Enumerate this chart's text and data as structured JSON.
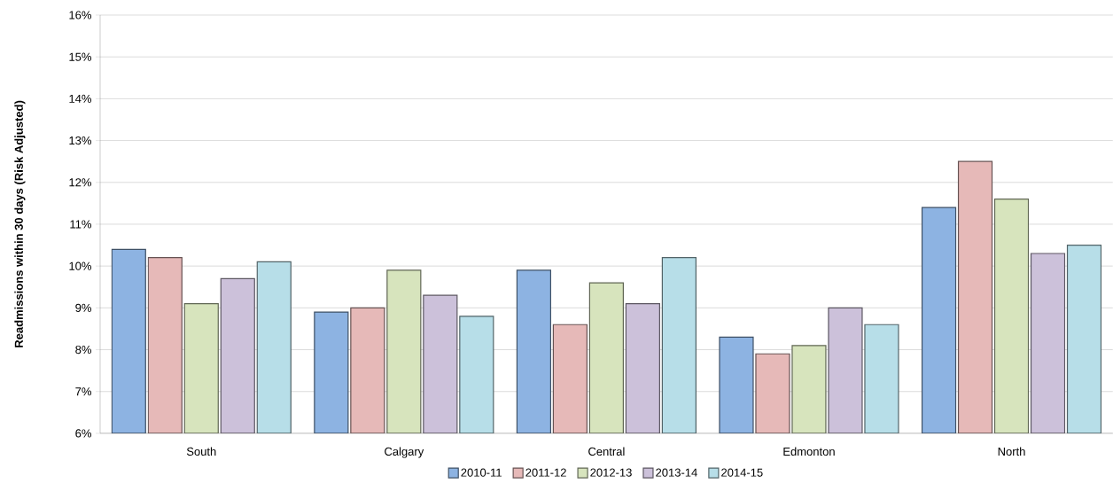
{
  "chart_data": {
    "type": "bar",
    "ylabel": "Readmissions within 30 days (Risk Adjusted)",
    "categories": [
      "South",
      "Calgary",
      "Central",
      "Edmonton",
      "North"
    ],
    "series": [
      {
        "name": "2010-11",
        "color": "#8db3e2",
        "values": [
          10.4,
          8.9,
          9.9,
          8.3,
          11.4
        ]
      },
      {
        "name": "2011-12",
        "color": "#e6b9b8",
        "values": [
          10.2,
          9.0,
          8.6,
          7.9,
          12.5
        ]
      },
      {
        "name": "2012-13",
        "color": "#d7e4bd",
        "values": [
          9.1,
          9.9,
          9.6,
          8.1,
          11.6
        ]
      },
      {
        "name": "2013-14",
        "color": "#ccc1da",
        "values": [
          9.7,
          9.3,
          9.1,
          9.0,
          10.3
        ]
      },
      {
        "name": "2014-15",
        "color": "#b7dee8",
        "values": [
          10.1,
          8.8,
          10.2,
          8.6,
          10.5
        ]
      }
    ],
    "ylim": [
      6,
      16
    ],
    "yticks": [
      {
        "value": 6,
        "label": "6%"
      },
      {
        "value": 7,
        "label": "7%"
      },
      {
        "value": 8,
        "label": "8%"
      },
      {
        "value": 9,
        "label": "9%"
      },
      {
        "value": 10,
        "label": "10%"
      },
      {
        "value": 11,
        "label": "11%"
      },
      {
        "value": 12,
        "label": "12%"
      },
      {
        "value": 13,
        "label": "13%"
      },
      {
        "value": 14,
        "label": "14%"
      },
      {
        "value": 15,
        "label": "15%"
      },
      {
        "value": 16,
        "label": "16%"
      }
    ],
    "grid": "y",
    "legend": "bottom"
  }
}
